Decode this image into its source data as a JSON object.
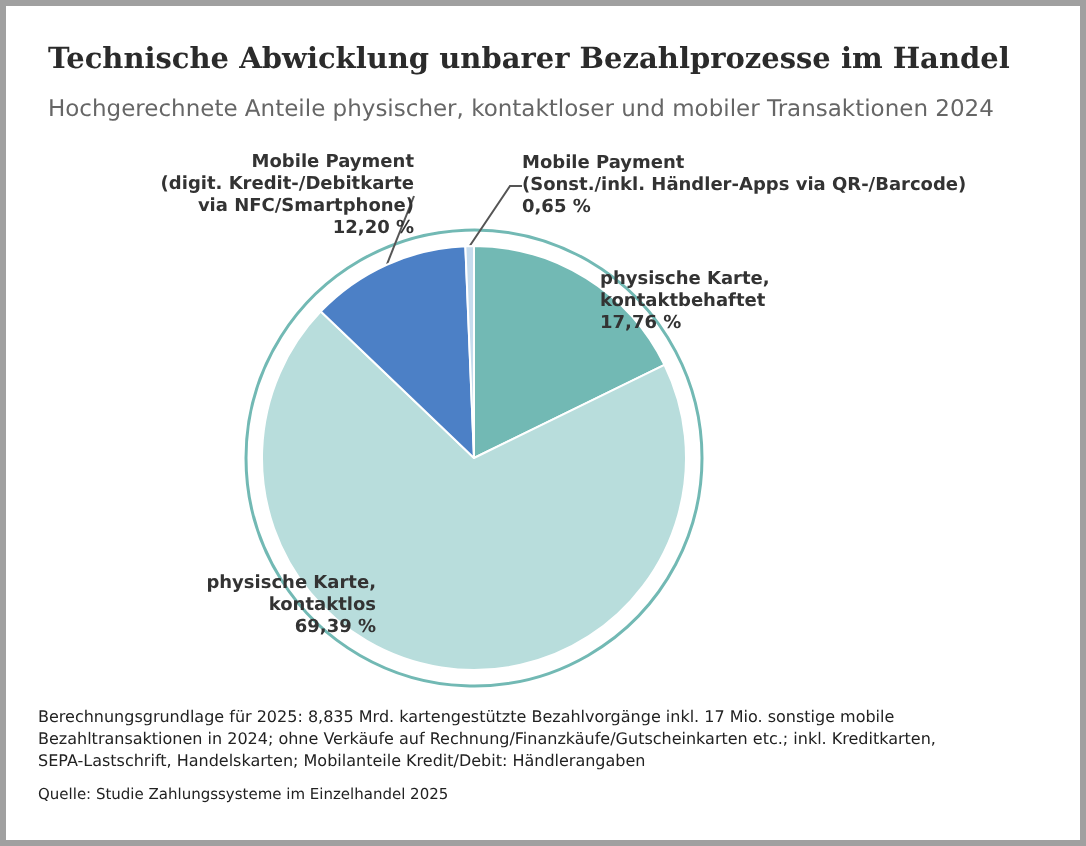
{
  "chart_data": {
    "type": "pie",
    "title": "Technische Abwicklung unbarer Bezahlprozesse im Handel",
    "subtitle": "Hochgerechnete Anteile physischer, kontaktloser und mobiler Transaktionen 2024",
    "categories": [
      "physische Karte,\nkontaktbehaftet",
      "physische Karte,\nkontaktlos",
      "Mobile Payment\n(digit. Kredit-/Debitkarte\nvia NFC/Smartphone)",
      "Mobile Payment\n(Sonst./inkl. Händler-Apps via QR-/Barcode)"
    ],
    "values": [
      17.76,
      69.39,
      12.2,
      0.65
    ],
    "value_labels": [
      "17,76 %",
      "69,39 %",
      "12,20 %",
      "0,65 %"
    ],
    "colors": [
      "#72b9b4",
      "#b8dddc",
      "#4c80c6",
      "#c6dced"
    ],
    "annotations": [
      "Berechnungsgrundlage für 2025: 8,835 Mrd. kartengestützte Bezahlvorgänge inkl. 17 Mio. sonstige mobile Bezahltransaktionen in 2024; ohne Verkäufe auf Rechnung/Finanzkäufe/Gutscheinkarten etc.; inkl. Kreditkarten, SEPA-Lastschrift, Handelskarten; Mobilanteile Kredit/Debit: Händlerangaben",
      "Quelle: Studie Zahlungssysteme im Einzelhandel 2025"
    ],
    "legend": false
  }
}
